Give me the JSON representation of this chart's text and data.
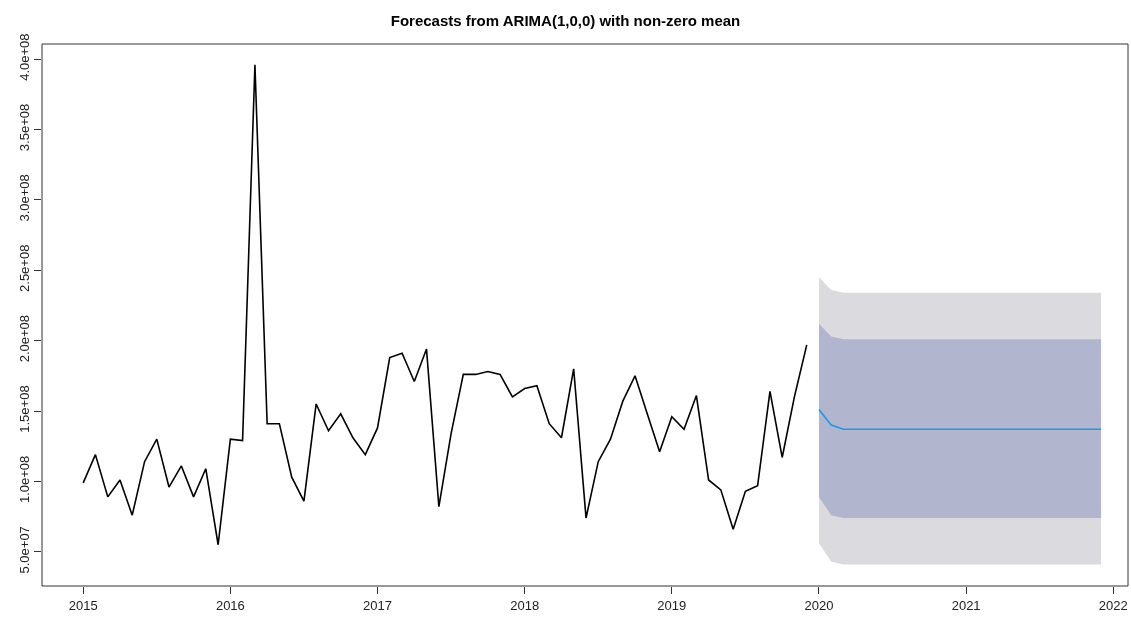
{
  "chart_data": {
    "type": "line",
    "title": "Forecasts from ARIMA(1,0,0) with non-zero mean",
    "xlim": [
      2014.72,
      2022.1
    ],
    "xticks": [
      2015,
      2016,
      2017,
      2018,
      2019,
      2020,
      2021,
      2022
    ],
    "ylim": [
      25700000,
      410700000
    ],
    "yticks": [
      {
        "value": 50000000,
        "label": "5.0e+07"
      },
      {
        "value": 100000000,
        "label": "1.0e+08"
      },
      {
        "value": 150000000,
        "label": "1.5e+08"
      },
      {
        "value": 200000000,
        "label": "2.0e+08"
      },
      {
        "value": 250000000,
        "label": "2.5e+08"
      },
      {
        "value": 300000000,
        "label": "3.0e+08"
      },
      {
        "value": 350000000,
        "label": "3.5e+08"
      },
      {
        "value": 400000000,
        "label": "4.0e+08"
      }
    ],
    "grid": false,
    "marker": "none",
    "line_style": "solid",
    "series": [
      {
        "color": "#000000",
        "x": [
          2015,
          2015.083,
          2015.167,
          2015.25,
          2015.333,
          2015.417,
          2015.5,
          2015.583,
          2015.667,
          2015.75,
          2015.833,
          2015.917,
          2016,
          2016.083,
          2016.167,
          2016.25,
          2016.333,
          2016.417,
          2016.5,
          2016.583,
          2016.667,
          2016.75,
          2016.833,
          2016.917,
          2017,
          2017.083,
          2017.167,
          2017.25,
          2017.333,
          2017.417,
          2017.5,
          2017.583,
          2017.667,
          2017.75,
          2017.833,
          2017.917,
          2018,
          2018.083,
          2018.167,
          2018.25,
          2018.333,
          2018.417,
          2018.5,
          2018.583,
          2018.667,
          2018.75,
          2018.833,
          2018.917,
          2019,
          2019.083,
          2019.167,
          2019.25,
          2019.333,
          2019.417,
          2019.5,
          2019.583,
          2019.667,
          2019.75,
          2019.833,
          2019.917
        ],
        "values": [
          99000000,
          119000000,
          89000000,
          101000000,
          76000000,
          114000000,
          130000000,
          96000000,
          111000000,
          89000000,
          109000000,
          55000000,
          130000000,
          129000000,
          396000000,
          141000000,
          141000000,
          103000000,
          86000000,
          155000000,
          136000000,
          148000000,
          131000000,
          119000000,
          138000000,
          188000000,
          191000000,
          171000000,
          194000000,
          82000000,
          134000000,
          176000000,
          176000000,
          178000000,
          176000000,
          160000000,
          166000000,
          168000000,
          141000000,
          131000000,
          180000000,
          74000000,
          114000000,
          130000000,
          157000000,
          175000000,
          148000000,
          121000000,
          146000000,
          137000000,
          161000000,
          101000000,
          94000000,
          66000000,
          93000000,
          97000000,
          164000000,
          117000000,
          160000000,
          197000000
        ]
      },
      {
        "color": "#dbdbdf",
        "x": [
          2020,
          2020.083,
          2020.167,
          2020.25,
          2020.333,
          2020.417,
          2020.5,
          2020.583,
          2020.667,
          2020.75,
          2020.833,
          2020.917,
          2021,
          2021.083,
          2021.167,
          2021.25,
          2021.333,
          2021.417,
          2021.5,
          2021.583,
          2021.667,
          2021.75,
          2021.833,
          2021.917
        ],
        "values": [
          null,
          null,
          null,
          null,
          null,
          null,
          null,
          null,
          null,
          null,
          null,
          null,
          null,
          null,
          null,
          null,
          null,
          null,
          null,
          null,
          null,
          null,
          null,
          null
        ],
        "lower": [
          56000000,
          43000000,
          41000000,
          41000000,
          41000000,
          41000000,
          41000000,
          41000000,
          41000000,
          41000000,
          41000000,
          41000000,
          41000000,
          41000000,
          41000000,
          41000000,
          41000000,
          41000000,
          41000000,
          41000000,
          41000000,
          41000000,
          41000000,
          41000000
        ],
        "upper": [
          245000000,
          236000000,
          234000000,
          234000000,
          234000000,
          234000000,
          234000000,
          234000000,
          234000000,
          234000000,
          234000000,
          234000000,
          234000000,
          234000000,
          234000000,
          234000000,
          234000000,
          234000000,
          234000000,
          234000000,
          234000000,
          234000000,
          234000000,
          234000000
        ]
      },
      {
        "color": "#b1b5ce",
        "x": [
          2020,
          2020.083,
          2020.167,
          2020.25,
          2020.333,
          2020.417,
          2020.5,
          2020.583,
          2020.667,
          2020.75,
          2020.833,
          2020.917,
          2021,
          2021.083,
          2021.167,
          2021.25,
          2021.333,
          2021.417,
          2021.5,
          2021.583,
          2021.667,
          2021.75,
          2021.833,
          2021.917
        ],
        "values": [
          null,
          null,
          null,
          null,
          null,
          null,
          null,
          null,
          null,
          null,
          null,
          null,
          null,
          null,
          null,
          null,
          null,
          null,
          null,
          null,
          null,
          null,
          null,
          null
        ],
        "lower": [
          89000000,
          76000000,
          74000000,
          74000000,
          74000000,
          74000000,
          74000000,
          74000000,
          74000000,
          74000000,
          74000000,
          74000000,
          74000000,
          74000000,
          74000000,
          74000000,
          74000000,
          74000000,
          74000000,
          74000000,
          74000000,
          74000000,
          74000000,
          74000000
        ],
        "upper": [
          212000000,
          203000000,
          201000000,
          201000000,
          201000000,
          201000000,
          201000000,
          201000000,
          201000000,
          201000000,
          201000000,
          201000000,
          201000000,
          201000000,
          201000000,
          201000000,
          201000000,
          201000000,
          201000000,
          201000000,
          201000000,
          201000000,
          201000000,
          201000000
        ]
      },
      {
        "color": "#2297e6",
        "x": [
          2020,
          2020.083,
          2020.167,
          2020.25,
          2020.333,
          2020.417,
          2020.5,
          2020.583,
          2020.667,
          2020.75,
          2020.833,
          2020.917,
          2021,
          2021.083,
          2021.167,
          2021.25,
          2021.333,
          2021.417,
          2021.5,
          2021.583,
          2021.667,
          2021.75,
          2021.833,
          2021.917
        ],
        "values": [
          151000000,
          140000000,
          137000000,
          137000000,
          137000000,
          137000000,
          137000000,
          137000000,
          137000000,
          137000000,
          137000000,
          137000000,
          137000000,
          137000000,
          137000000,
          137000000,
          137000000,
          137000000,
          137000000,
          137000000,
          137000000,
          137000000,
          137000000,
          137000000
        ]
      }
    ]
  }
}
